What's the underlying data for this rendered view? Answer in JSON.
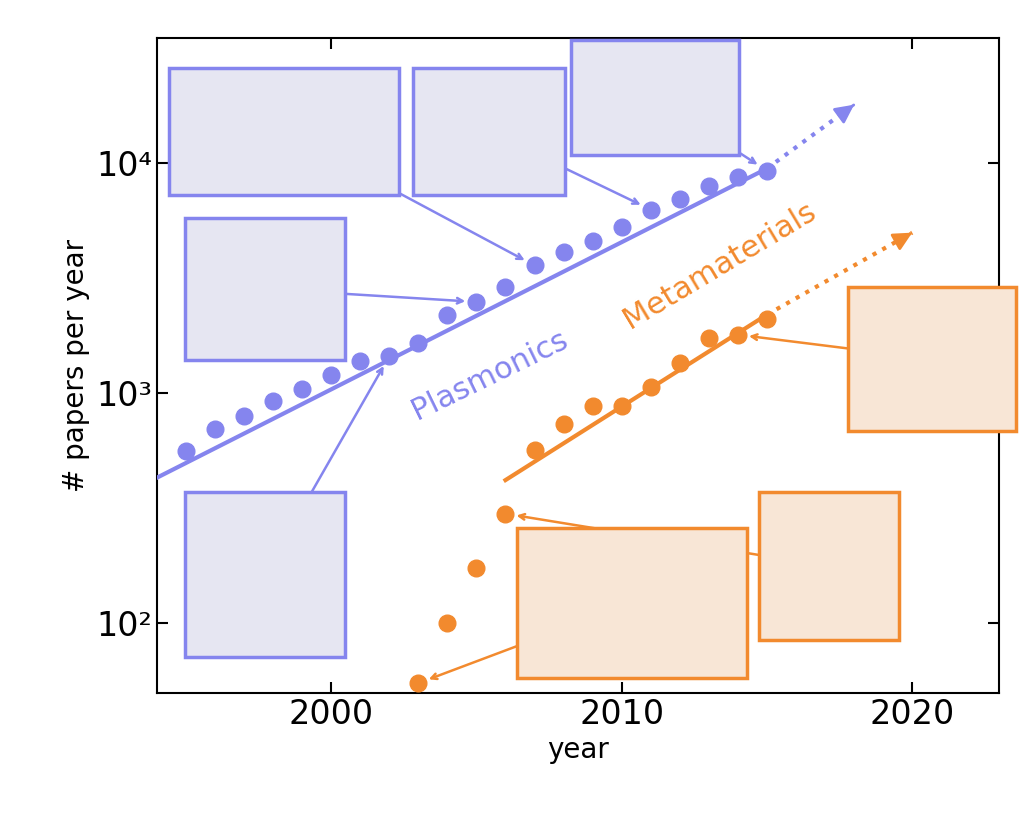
{
  "chart_data": {
    "type": "scatter",
    "log": "y",
    "x_label": "year",
    "y_label": "# papers per year",
    "xlim": [
      1994,
      2023
    ],
    "xticks": [
      2000,
      2010,
      2020
    ],
    "ylim": [
      50,
      35000
    ],
    "yticks": [
      {
        "value": 100,
        "label": "10²"
      },
      {
        "value": 1000,
        "label": "10³"
      },
      {
        "value": 10000,
        "label": "10⁴"
      }
    ],
    "series": [
      {
        "name": "Plasmonics",
        "color": "#8585ee",
        "marker": "o",
        "x": [
          1995,
          1996,
          1997,
          1998,
          1999,
          2000,
          2001,
          2002,
          2003,
          2004,
          2005,
          2006,
          2007,
          2008,
          2009,
          2010,
          2011,
          2012,
          2013,
          2014,
          2015
        ],
        "values": [
          560,
          700,
          800,
          930,
          1050,
          1200,
          1380,
          1450,
          1650,
          2200,
          2500,
          2900,
          3600,
          4100,
          4600,
          5300,
          6300,
          7000,
          8000,
          8700,
          9300
        ],
        "trend": {
          "x": [
            1994,
            2015
          ],
          "values": [
            430,
            9500
          ]
        },
        "extrapolation": {
          "x": [
            2015,
            2018
          ],
          "values": [
            9500,
            18000
          ],
          "line_style": "dotted"
        }
      },
      {
        "name": "Metamaterials",
        "color": "#f28a2e",
        "marker": "o",
        "x": [
          2003,
          2004,
          2005,
          2006,
          2007,
          2008,
          2009,
          2010,
          2011,
          2012,
          2013,
          2014,
          2015
        ],
        "values": [
          55,
          100,
          175,
          300,
          570,
          740,
          880,
          880,
          1070,
          1350,
          1750,
          1800,
          2100
        ],
        "trend": {
          "x": [
            2006,
            2015
          ],
          "values": [
            420,
            2200
          ]
        },
        "extrapolation": {
          "x": [
            2015,
            2020
          ],
          "values": [
            2200,
            5000
          ],
          "line_style": "dotted"
        }
      }
    ]
  }
}
